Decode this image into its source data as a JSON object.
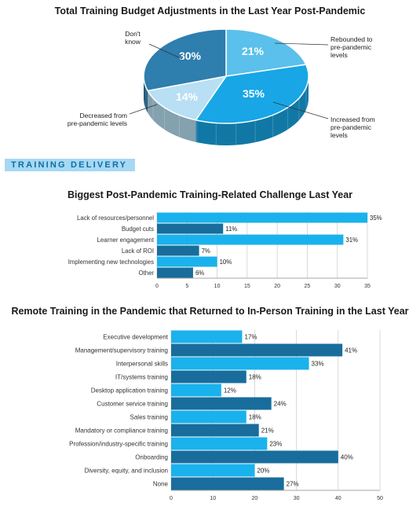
{
  "chart_data": [
    {
      "type": "pie",
      "title": "Total Training Budget Adjustments in the Last Year Post-Pandemic",
      "slices": [
        {
          "label": "Rebounded to pre-pandemic levels",
          "value": 21,
          "display": "21%",
          "color": "#5bc0eb"
        },
        {
          "label": "Increased from pre-pandemic levels",
          "value": 35,
          "display": "35%",
          "color": "#18a6e6"
        },
        {
          "label": "Decreased from pre-pandemic levels",
          "value": 14,
          "display": "14%",
          "color": "#b8dff3"
        },
        {
          "label": "Don't know",
          "value": 30,
          "display": "30%",
          "color": "#2e7eae"
        }
      ]
    },
    {
      "type": "bar",
      "orientation": "horizontal",
      "title": "Biggest Post-Pandemic Training-Related Challenge Last Year",
      "categories": [
        "Lack of resources/personnel",
        "Budget cuts",
        "Learner engagement",
        "Lack of ROI",
        "Implementing new technologies",
        "Other"
      ],
      "values": [
        35,
        11,
        31,
        7,
        10,
        6
      ],
      "value_labels": [
        "35%",
        "11%",
        "31%",
        "7%",
        "10%",
        "6%"
      ],
      "colors": [
        "#1ab2ec",
        "#186d9c",
        "#1ab2ec",
        "#186d9c",
        "#1ab2ec",
        "#186d9c"
      ],
      "xlim": [
        0,
        35
      ],
      "xticks": [
        0,
        5,
        10,
        15,
        20,
        25,
        30,
        35
      ],
      "grid": true
    },
    {
      "type": "bar",
      "orientation": "horizontal",
      "title": "Remote Training in the Pandemic that Returned to In-Person Training in the Last Year",
      "categories": [
        "Executive development",
        "Management/supervisory training",
        "Interpersonal skills",
        "IT/systems training",
        "Desktop application training",
        "Customer service training",
        "Sales training",
        "Mandatory or compliance training",
        "Profession/industry-specific training",
        "Onboarding",
        "Diversity, equity, and inclusion",
        "None"
      ],
      "values": [
        17,
        41,
        33,
        18,
        12,
        24,
        18,
        21,
        23,
        40,
        20,
        27
      ],
      "value_labels": [
        "17%",
        "41%",
        "33%",
        "18%",
        "12%",
        "24%",
        "18%",
        "21%",
        "23%",
        "40%",
        "20%",
        "27%"
      ],
      "colors": [
        "#1ab2ec",
        "#186d9c",
        "#1ab2ec",
        "#186d9c",
        "#1ab2ec",
        "#186d9c",
        "#1ab2ec",
        "#186d9c",
        "#1ab2ec",
        "#186d9c",
        "#1ab2ec",
        "#186d9c"
      ],
      "xlim": [
        0,
        50
      ],
      "xticks": [
        0,
        10,
        20,
        30,
        40,
        50
      ],
      "grid": true
    }
  ],
  "section": {
    "label": "TRAINING DELIVERY"
  }
}
